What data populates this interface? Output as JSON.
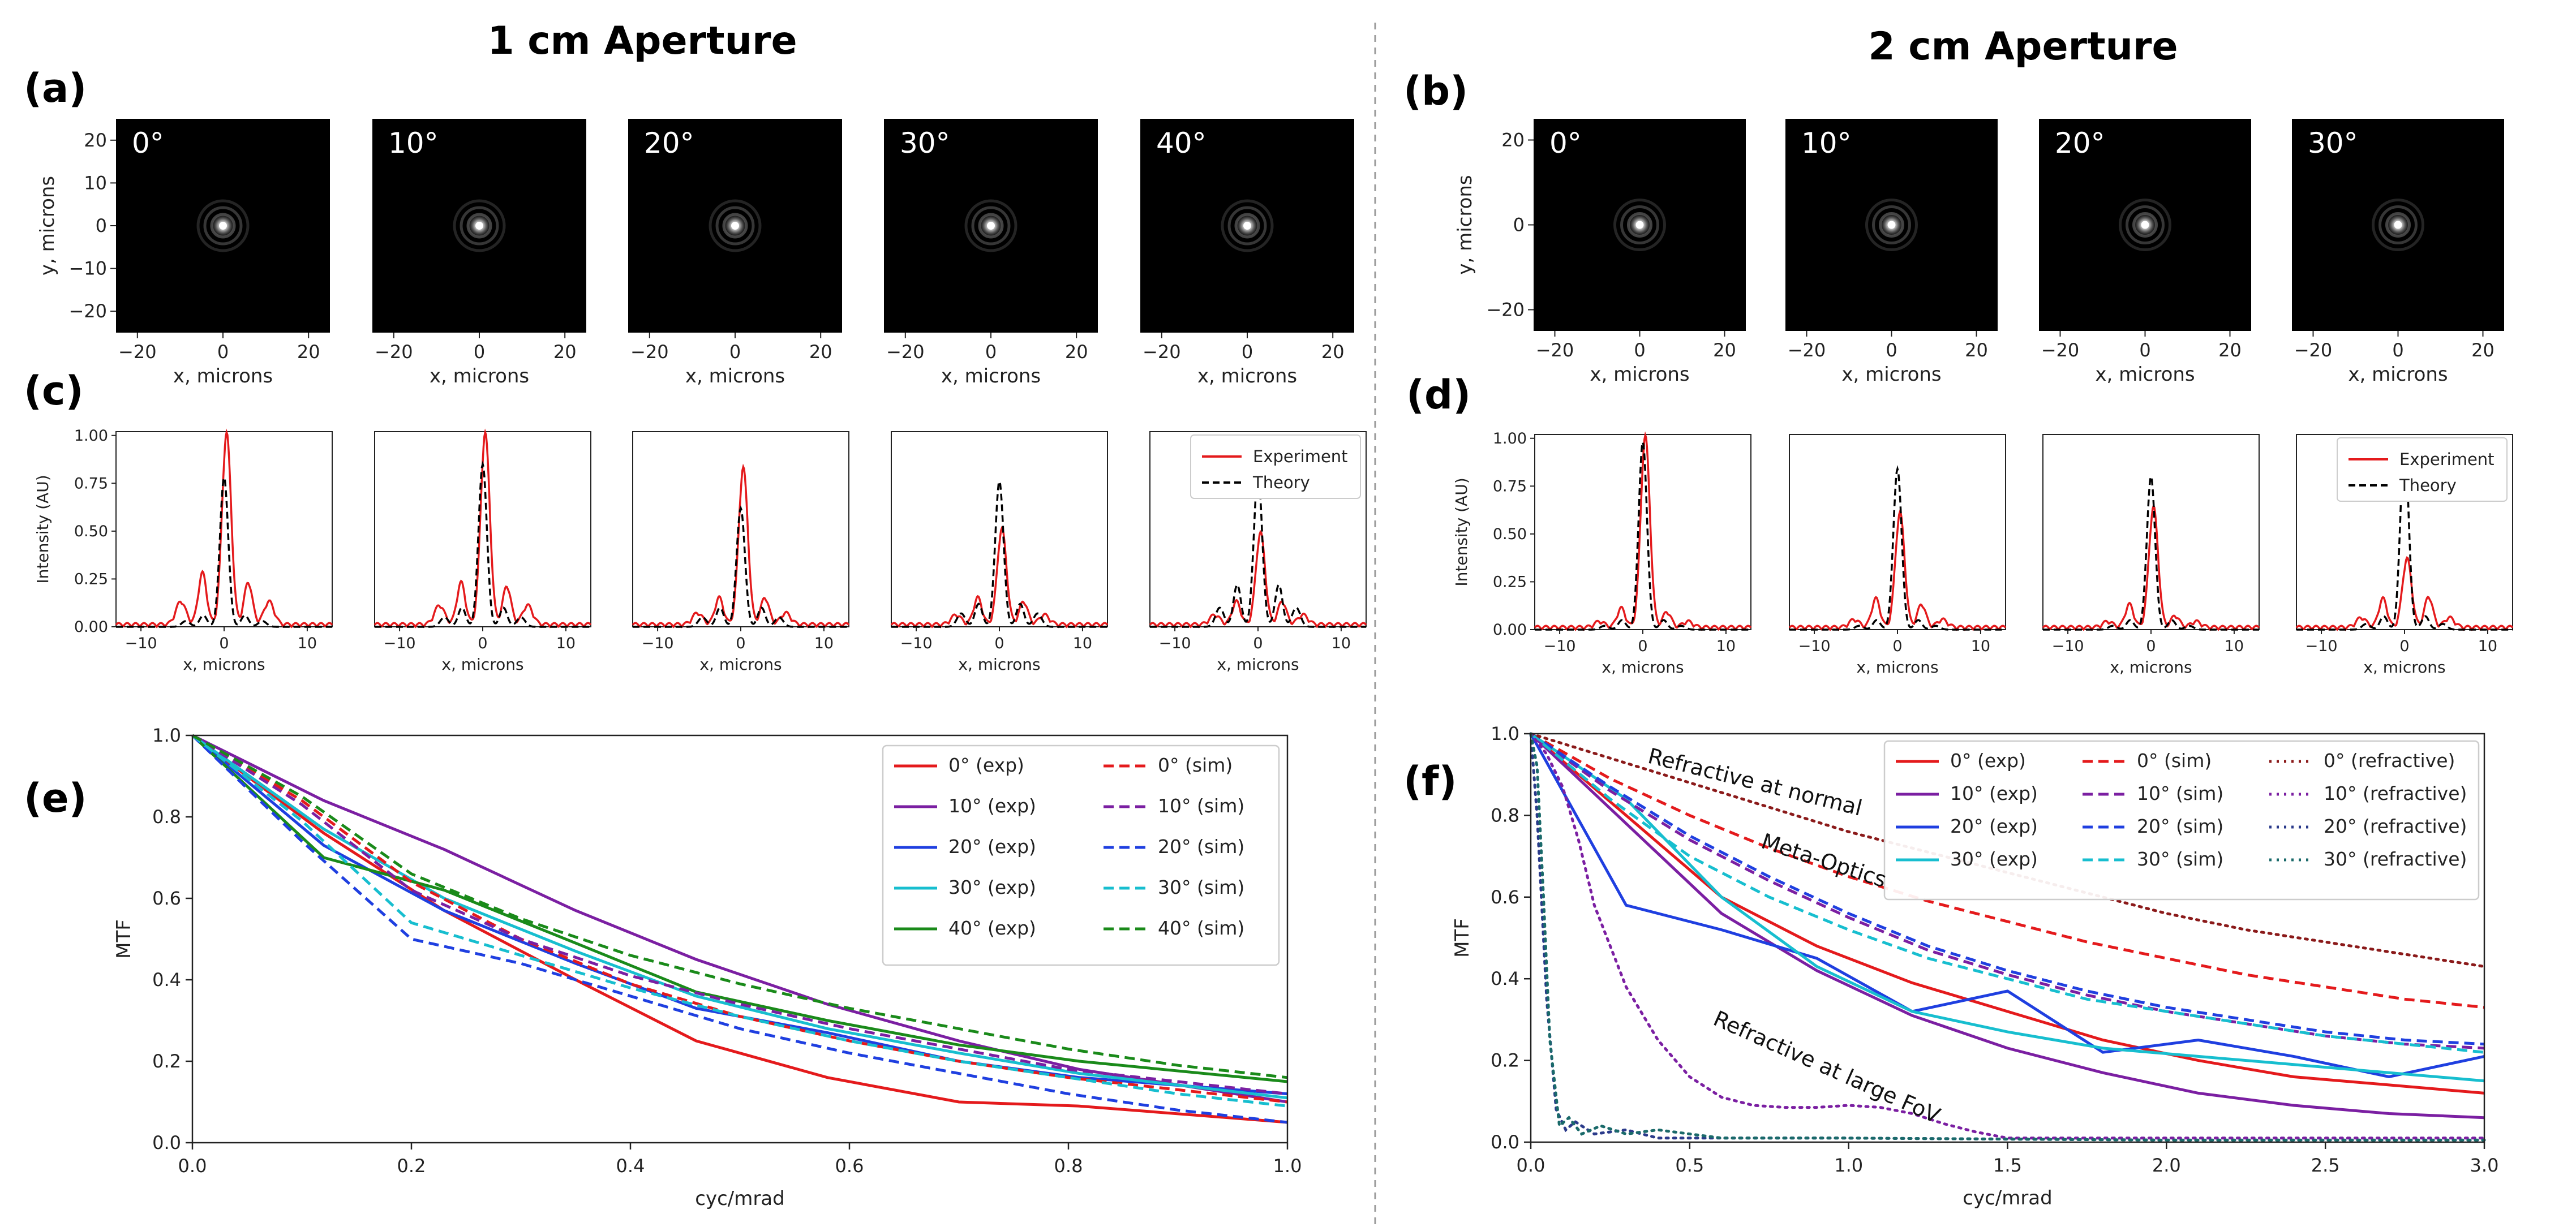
{
  "titles": {
    "left": "1 cm Aperture",
    "right": "2 cm Aperture"
  },
  "panel_labels": {
    "a": "(a)",
    "b": "(b)",
    "c": "(c)",
    "d": "(d)",
    "e": "(e)",
    "f": "(f)"
  },
  "psf_images": {
    "xlabel": "x, microns",
    "ylabel": "y, microns",
    "ticks": [
      "−20",
      "0",
      "20"
    ],
    "yticks": [
      "20",
      "10",
      "0",
      "−10",
      "−20"
    ],
    "left_angles": [
      "0°",
      "10°",
      "20°",
      "30°",
      "40°"
    ],
    "right_angles": [
      "0°",
      "10°",
      "20°",
      "30°"
    ],
    "left_yticks": [
      "20",
      "10",
      "0",
      "−10",
      "−20"
    ],
    "right_yticks": [
      "20",
      "0",
      "−20"
    ]
  },
  "chart_data": [
    {
      "id": "c",
      "type": "line",
      "panels": 5,
      "xlabel": "x, microns",
      "ylabel": "Intensity (AU)",
      "xlim": [
        -13,
        13
      ],
      "ylim": [
        0,
        1.02
      ],
      "xticks": [
        "−10",
        "0",
        "10"
      ],
      "yticks": [
        "0.00",
        "0.25",
        "0.50",
        "0.75",
        "1.00"
      ],
      "legend": [
        "Experiment",
        "Theory"
      ],
      "series_colors": [
        "#e41a1c",
        "#000000"
      ],
      "peaks": [
        {
          "exp": 1.0,
          "theory": 0.78,
          "exp_side": [
            0.27,
            0.22,
            0.12
          ],
          "theory_side": [
            0.06,
            0.03
          ]
        },
        {
          "exp": 1.0,
          "theory": 0.85,
          "exp_side": [
            0.22,
            0.2,
            0.1
          ],
          "theory_side": [
            0.1,
            0.05
          ]
        },
        {
          "exp": 0.82,
          "theory": 0.62,
          "exp_side": [
            0.14,
            0.14,
            0.06
          ],
          "theory_side": [
            0.1,
            0.05
          ]
        },
        {
          "exp": 0.5,
          "theory": 0.76,
          "exp_side": [
            0.14,
            0.12,
            0.05
          ],
          "theory_side": [
            0.12,
            0.07
          ]
        },
        {
          "exp": 0.48,
          "theory": 0.8,
          "exp_side": [
            0.12,
            0.12,
            0.05
          ],
          "theory_side": [
            0.22,
            0.1
          ]
        }
      ]
    },
    {
      "id": "d",
      "type": "line",
      "panels": 4,
      "xlabel": "x, microns",
      "ylabel": "Intensity (AU)",
      "xlim": [
        -13,
        13
      ],
      "ylim": [
        0,
        1.02
      ],
      "xticks": [
        "−10",
        "0",
        "10"
      ],
      "yticks": [
        "0.00",
        "0.25",
        "0.50",
        "0.75",
        "1.00"
      ],
      "legend": [
        "Experiment",
        "Theory"
      ],
      "series_colors": [
        "#e41a1c",
        "#000000"
      ],
      "peaks": [
        {
          "exp": 1.0,
          "theory": 0.98,
          "exp_side": [
            0.1,
            0.08,
            0.03
          ],
          "theory_side": [
            0.05,
            0.02
          ]
        },
        {
          "exp": 0.6,
          "theory": 0.84,
          "exp_side": [
            0.15,
            0.12,
            0.04
          ],
          "theory_side": [
            0.05,
            0.02
          ]
        },
        {
          "exp": 0.63,
          "theory": 0.8,
          "exp_side": [
            0.12,
            0.06,
            0.03
          ],
          "theory_side": [
            0.05,
            0.02
          ]
        },
        {
          "exp": 0.36,
          "theory": 0.98,
          "exp_side": [
            0.15,
            0.16,
            0.05
          ],
          "theory_side": [
            0.07,
            0.03
          ]
        }
      ]
    },
    {
      "id": "e",
      "type": "line",
      "xlabel": "cyc/mrad",
      "ylabel": "MTF",
      "xlim": [
        0,
        1
      ],
      "ylim": [
        0,
        1
      ],
      "xticks": [
        "0.0",
        "0.2",
        "0.4",
        "0.6",
        "0.8",
        "1.0"
      ],
      "yticks": [
        "0.0",
        "0.2",
        "0.4",
        "0.6",
        "0.8",
        "1.0"
      ],
      "series": [
        {
          "name": "0° (exp)",
          "color": "#e41a1c",
          "style": "solid",
          "x": [
            0,
            0.12,
            0.23,
            0.35,
            0.46,
            0.58,
            0.7,
            0.81,
            1.0
          ],
          "y": [
            1.0,
            0.76,
            0.57,
            0.4,
            0.25,
            0.16,
            0.1,
            0.09,
            0.05
          ]
        },
        {
          "name": "10° (exp)",
          "color": "#7b1fa2",
          "style": "solid",
          "x": [
            0,
            0.12,
            0.23,
            0.35,
            0.46,
            0.58,
            0.7,
            0.81,
            1.0
          ],
          "y": [
            1.0,
            0.84,
            0.72,
            0.57,
            0.45,
            0.34,
            0.25,
            0.18,
            0.1
          ]
        },
        {
          "name": "20° (exp)",
          "color": "#1f3fe0",
          "style": "solid",
          "x": [
            0,
            0.12,
            0.23,
            0.35,
            0.46,
            0.58,
            0.7,
            0.81,
            1.0
          ],
          "y": [
            1.0,
            0.73,
            0.57,
            0.44,
            0.33,
            0.27,
            0.2,
            0.16,
            0.12
          ]
        },
        {
          "name": "30° (exp)",
          "color": "#17becf",
          "style": "solid",
          "x": [
            0,
            0.12,
            0.23,
            0.35,
            0.46,
            0.58,
            0.7,
            0.81,
            1.0
          ],
          "y": [
            1.0,
            0.77,
            0.6,
            0.47,
            0.36,
            0.28,
            0.22,
            0.17,
            0.11
          ]
        },
        {
          "name": "40° (exp)",
          "color": "#1a8a1a",
          "style": "solid",
          "x": [
            0,
            0.12,
            0.23,
            0.35,
            0.46,
            0.58,
            0.7,
            0.81,
            1.0
          ],
          "y": [
            1.0,
            0.7,
            0.62,
            0.49,
            0.37,
            0.3,
            0.24,
            0.2,
            0.15
          ]
        },
        {
          "name": "0° (sim)",
          "color": "#e41a1c",
          "style": "dashed",
          "x": [
            0,
            0.1,
            0.2,
            0.3,
            0.4,
            0.5,
            0.6,
            0.7,
            0.8,
            0.9,
            1.0
          ],
          "y": [
            1.0,
            0.84,
            0.64,
            0.5,
            0.39,
            0.31,
            0.25,
            0.2,
            0.16,
            0.13,
            0.1
          ]
        },
        {
          "name": "10° (sim)",
          "color": "#7b1fa2",
          "style": "dashed",
          "x": [
            0,
            0.1,
            0.2,
            0.3,
            0.4,
            0.5,
            0.6,
            0.7,
            0.8,
            0.9,
            1.0
          ],
          "y": [
            1.0,
            0.83,
            0.62,
            0.5,
            0.41,
            0.34,
            0.28,
            0.23,
            0.18,
            0.15,
            0.12
          ]
        },
        {
          "name": "20° (sim)",
          "color": "#1f3fe0",
          "style": "dashed",
          "x": [
            0,
            0.1,
            0.2,
            0.3,
            0.4,
            0.5,
            0.6,
            0.7,
            0.8,
            0.9,
            1.0
          ],
          "y": [
            1.0,
            0.74,
            0.5,
            0.44,
            0.36,
            0.28,
            0.22,
            0.17,
            0.12,
            0.08,
            0.05
          ]
        },
        {
          "name": "30° (sim)",
          "color": "#17becf",
          "style": "dashed",
          "x": [
            0,
            0.1,
            0.2,
            0.3,
            0.4,
            0.5,
            0.6,
            0.7,
            0.8,
            0.9,
            1.0
          ],
          "y": [
            1.0,
            0.79,
            0.54,
            0.46,
            0.38,
            0.31,
            0.25,
            0.2,
            0.16,
            0.12,
            0.09
          ]
        },
        {
          "name": "40° (sim)",
          "color": "#1a8a1a",
          "style": "dashed",
          "x": [
            0,
            0.1,
            0.2,
            0.3,
            0.4,
            0.5,
            0.6,
            0.7,
            0.8,
            0.9,
            1.0
          ],
          "y": [
            1.0,
            0.85,
            0.66,
            0.55,
            0.46,
            0.39,
            0.33,
            0.28,
            0.23,
            0.19,
            0.16
          ]
        }
      ]
    },
    {
      "id": "f",
      "type": "line",
      "xlabel": "cyc/mrad",
      "ylabel": "MTF",
      "xlim": [
        0,
        3
      ],
      "ylim": [
        0,
        1
      ],
      "xticks": [
        "0.0",
        "0.5",
        "1.0",
        "1.5",
        "2.0",
        "2.5",
        "3.0"
      ],
      "yticks": [
        "0.0",
        "0.2",
        "0.4",
        "0.6",
        "0.8",
        "1.0"
      ],
      "annotations": [
        "Refractive at normal",
        "Meta-Optics",
        "Refractive at large FoV"
      ],
      "series": [
        {
          "name": "0° (exp)",
          "color": "#e41a1c",
          "style": "solid",
          "x": [
            0,
            0.3,
            0.6,
            0.9,
            1.2,
            1.5,
            1.8,
            2.1,
            2.4,
            2.7,
            3.0
          ],
          "y": [
            1.0,
            0.8,
            0.6,
            0.48,
            0.39,
            0.32,
            0.25,
            0.2,
            0.16,
            0.14,
            0.12
          ]
        },
        {
          "name": "10° (exp)",
          "color": "#7b1fa2",
          "style": "solid",
          "x": [
            0,
            0.3,
            0.6,
            0.9,
            1.2,
            1.5,
            1.8,
            2.1,
            2.4,
            2.7,
            3.0
          ],
          "y": [
            1.0,
            0.78,
            0.56,
            0.42,
            0.31,
            0.23,
            0.17,
            0.12,
            0.09,
            0.07,
            0.06
          ]
        },
        {
          "name": "20° (exp)",
          "color": "#1f3fe0",
          "style": "solid",
          "x": [
            0,
            0.3,
            0.6,
            0.9,
            1.2,
            1.5,
            1.8,
            2.1,
            2.4,
            2.7,
            3.0
          ],
          "y": [
            1.0,
            0.58,
            0.52,
            0.45,
            0.32,
            0.37,
            0.22,
            0.25,
            0.21,
            0.16,
            0.21
          ]
        },
        {
          "name": "30° (exp)",
          "color": "#17becf",
          "style": "solid",
          "x": [
            0,
            0.3,
            0.6,
            0.9,
            1.2,
            1.5,
            1.8,
            2.1,
            2.4,
            2.7,
            3.0
          ],
          "y": [
            1.0,
            0.84,
            0.6,
            0.43,
            0.32,
            0.27,
            0.23,
            0.21,
            0.19,
            0.17,
            0.15
          ]
        },
        {
          "name": "0° (sim)",
          "color": "#e41a1c",
          "style": "dashed",
          "x": [
            0,
            0.25,
            0.5,
            0.75,
            1.0,
            1.25,
            1.5,
            1.75,
            2.0,
            2.25,
            2.5,
            2.75,
            3.0
          ],
          "y": [
            1.0,
            0.89,
            0.8,
            0.72,
            0.65,
            0.59,
            0.54,
            0.49,
            0.45,
            0.41,
            0.38,
            0.35,
            0.33
          ]
        },
        {
          "name": "10° (sim)",
          "color": "#7b1fa2",
          "style": "dashed",
          "x": [
            0,
            0.25,
            0.5,
            0.75,
            1.0,
            1.25,
            1.5,
            1.75,
            2.0,
            2.25,
            2.5,
            2.75,
            3.0
          ],
          "y": [
            1.0,
            0.86,
            0.74,
            0.64,
            0.55,
            0.47,
            0.41,
            0.36,
            0.32,
            0.29,
            0.26,
            0.24,
            0.23
          ]
        },
        {
          "name": "20° (sim)",
          "color": "#1f3fe0",
          "style": "dashed",
          "x": [
            0,
            0.25,
            0.5,
            0.75,
            1.0,
            1.25,
            1.5,
            1.75,
            2.0,
            2.25,
            2.5,
            2.75,
            3.0
          ],
          "y": [
            1.0,
            0.87,
            0.75,
            0.65,
            0.56,
            0.48,
            0.42,
            0.37,
            0.33,
            0.3,
            0.27,
            0.25,
            0.24
          ]
        },
        {
          "name": "30° (sim)",
          "color": "#17becf",
          "style": "dashed",
          "x": [
            0,
            0.25,
            0.5,
            0.75,
            1.0,
            1.25,
            1.5,
            1.75,
            2.0,
            2.25,
            2.5,
            2.75,
            3.0
          ],
          "y": [
            1.0,
            0.84,
            0.7,
            0.6,
            0.52,
            0.45,
            0.4,
            0.35,
            0.32,
            0.29,
            0.26,
            0.24,
            0.22
          ]
        },
        {
          "name": "0° (refractive)",
          "color": "#8b1a1a",
          "style": "dotted",
          "x": [
            0,
            0.25,
            0.5,
            0.75,
            1.0,
            1.25,
            1.5,
            1.75,
            2.0,
            2.25,
            2.5,
            2.75,
            3.0
          ],
          "y": [
            1.0,
            0.94,
            0.88,
            0.82,
            0.76,
            0.71,
            0.66,
            0.61,
            0.56,
            0.52,
            0.49,
            0.46,
            0.43
          ]
        },
        {
          "name": "10° (refractive)",
          "color": "#7b1fa2",
          "style": "dotted",
          "x": [
            0,
            0.05,
            0.1,
            0.15,
            0.2,
            0.3,
            0.4,
            0.5,
            0.6,
            0.7,
            0.8,
            0.9,
            1.0,
            1.1,
            1.2,
            1.3,
            1.4,
            1.5,
            2.0,
            2.5,
            3.0
          ],
          "y": [
            1.0,
            0.95,
            0.87,
            0.74,
            0.58,
            0.38,
            0.25,
            0.16,
            0.11,
            0.09,
            0.085,
            0.085,
            0.09,
            0.085,
            0.07,
            0.045,
            0.025,
            0.01,
            0.01,
            0.01,
            0.01
          ]
        },
        {
          "name": "20° (refractive)",
          "color": "#2a3a8a",
          "style": "dotted",
          "x": [
            0,
            0.02,
            0.05,
            0.08,
            0.11,
            0.14,
            0.2,
            0.3,
            0.4,
            0.6,
            1.0,
            2.0,
            3.0
          ],
          "y": [
            1.0,
            0.8,
            0.35,
            0.08,
            0.03,
            0.05,
            0.02,
            0.03,
            0.01,
            0.01,
            0.01,
            0.005,
            0.005
          ]
        },
        {
          "name": "30° (refractive)",
          "color": "#1a6a6a",
          "style": "dotted",
          "x": [
            0,
            0.02,
            0.04,
            0.06,
            0.09,
            0.12,
            0.16,
            0.22,
            0.3,
            0.4,
            0.6,
            1.0,
            2.0,
            3.0
          ],
          "y": [
            1.0,
            0.92,
            0.6,
            0.25,
            0.04,
            0.06,
            0.02,
            0.04,
            0.02,
            0.03,
            0.01,
            0.01,
            0.005,
            0.005
          ]
        }
      ]
    }
  ]
}
